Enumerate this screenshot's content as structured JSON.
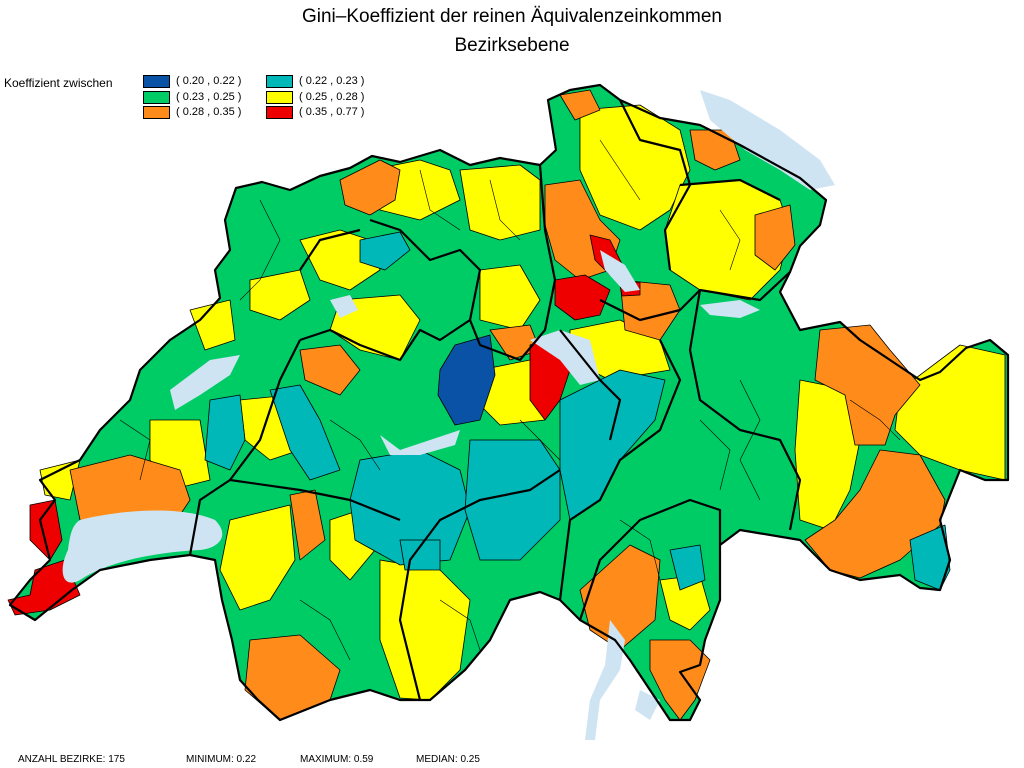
{
  "title": "Gini–Koeffizient der reinen Äquivalenzeinkommen",
  "subtitle": "Bezirksebene",
  "legend": {
    "label": "Koeffizient zwischen",
    "items": [
      {
        "text": "( 0.20 , 0.22 )",
        "color": "#0a52a6"
      },
      {
        "text": "( 0.22 , 0.23 )",
        "color": "#00b8b8"
      },
      {
        "text": "( 0.23 , 0.25 )",
        "color": "#00cc66"
      },
      {
        "text": "( 0.25 , 0.28 )",
        "color": "#ffff00"
      },
      {
        "text": "( 0.28 , 0.35 )",
        "color": "#ff8c1a"
      },
      {
        "text": "( 0.35 , 0.77 )",
        "color": "#ee0000"
      }
    ]
  },
  "footer": {
    "count": "ANZAHL BEZIRKE: 175",
    "min": "MINIMUM: 0.22",
    "max": "MAXIMUM: 0.59",
    "median": "MEDIAN: 0.25"
  },
  "colors": {
    "lake": "#cfe4f2",
    "border": "#000000",
    "background": "#ffffff"
  }
}
